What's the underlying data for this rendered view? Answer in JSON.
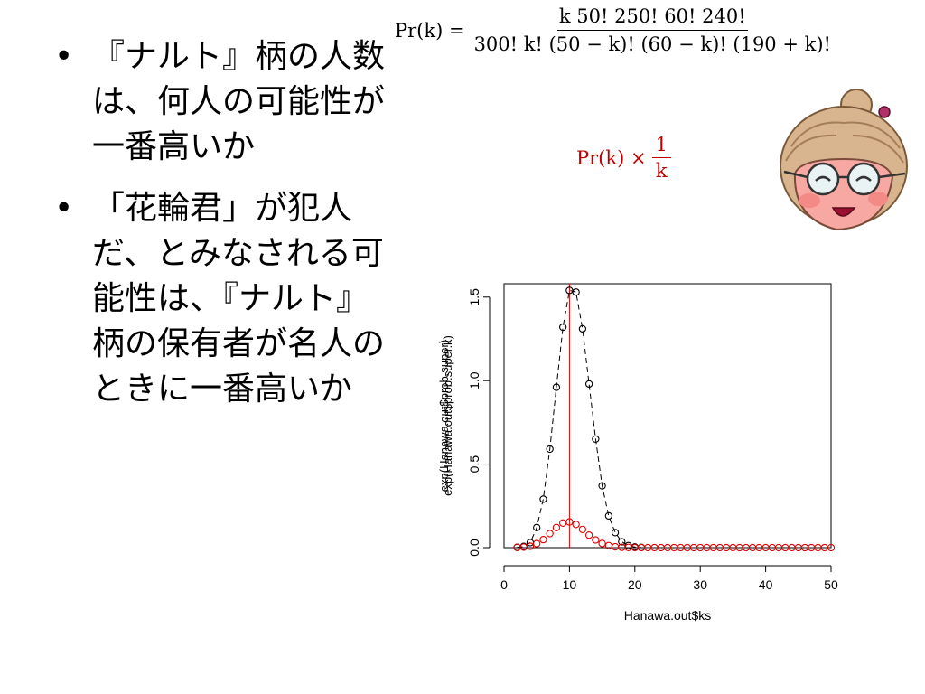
{
  "slide": {
    "bullets": [
      "『ナルト』柄の人数は、何人の可能性が一番高いか",
      "「花輪君」が犯人だ、とみなされる可能性は、『ナルト』柄の保有者が名人のときに一番高いか"
    ]
  },
  "formula_main": {
    "lhs": "Pr(k) =",
    "numerator": "k 50! 250! 60! 240!",
    "denominator": "300! k! (50 − k)! (60 − k)! (190 + k)!"
  },
  "formula_weighted": {
    "lhs": "Pr(k) ×",
    "numerator": "1",
    "denominator": "k"
  },
  "avatar": {
    "icon": "grandma-with-glasses-icon"
  },
  "chart_data": {
    "type": "scatter",
    "xlabel": "Hanawa.out$ks",
    "ylabel": "exp(Hanawa.out$prob.super)\nexp(Hanawa.out$prob.super.k)",
    "xlim": [
      0,
      50
    ],
    "ylim": [
      0,
      1.58
    ],
    "x_ticks": [
      0,
      10,
      20,
      30,
      40,
      50
    ],
    "y_ticks": [
      0.0,
      0.5,
      1.0,
      1.5
    ],
    "x_tick_labels": [
      "0",
      "10",
      "20",
      "30",
      "40",
      "50"
    ],
    "y_tick_labels": [
      "0.0",
      "0.5",
      "1.0",
      "1.5"
    ],
    "vline": {
      "x": 10,
      "color": "#e00000"
    },
    "grid": false,
    "series": [
      {
        "color": "#000000",
        "style": "dashed-line-with-circles",
        "x": [
          2,
          3,
          4,
          5,
          6,
          7,
          8,
          9,
          10,
          11,
          12,
          13,
          14,
          15,
          16,
          17,
          18,
          19,
          20,
          21
        ],
        "y": [
          0.002,
          0.007,
          0.03,
          0.12,
          0.29,
          0.59,
          0.96,
          1.32,
          1.54,
          1.53,
          1.31,
          0.98,
          0.65,
          0.37,
          0.19,
          0.09,
          0.035,
          0.012,
          0.004,
          0.001
        ]
      },
      {
        "color": "#e00000",
        "style": "circles",
        "x": [
          2,
          3,
          4,
          5,
          6,
          7,
          8,
          9,
          10,
          11,
          12,
          13,
          14,
          15,
          16,
          17,
          18,
          19,
          20,
          21,
          22,
          23,
          24,
          25,
          26,
          27,
          28,
          29,
          30,
          31,
          32,
          33,
          34,
          35,
          36,
          37,
          38,
          39,
          40,
          41,
          42,
          43,
          44,
          45,
          46,
          47,
          48,
          49,
          50
        ],
        "y": [
          0.001,
          0.003,
          0.008,
          0.024,
          0.048,
          0.084,
          0.12,
          0.147,
          0.154,
          0.139,
          0.109,
          0.075,
          0.046,
          0.025,
          0.012,
          0.005,
          0.002,
          0.001,
          0,
          0,
          0,
          0,
          0,
          0,
          0,
          0,
          0,
          0,
          0,
          0,
          0,
          0,
          0,
          0,
          0,
          0,
          0,
          0,
          0,
          0,
          0,
          0,
          0,
          0,
          0,
          0,
          0,
          0,
          0
        ]
      }
    ]
  }
}
